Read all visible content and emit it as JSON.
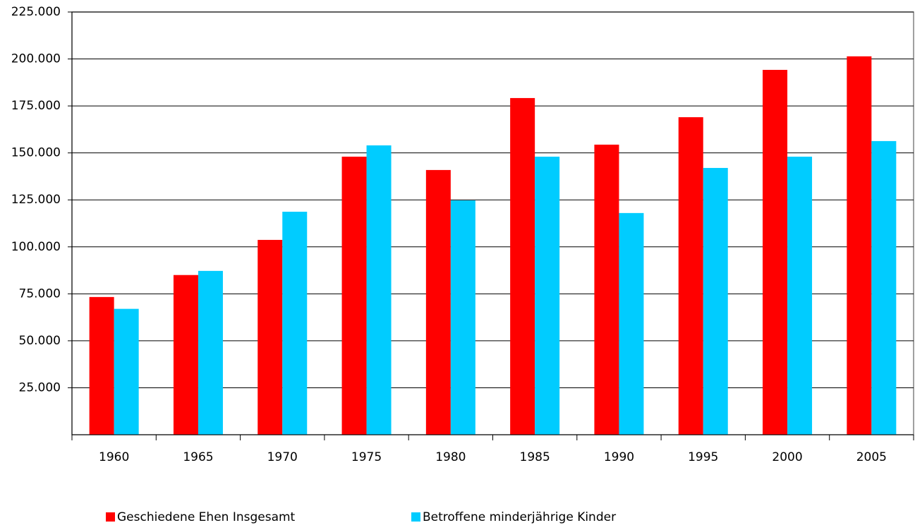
{
  "chart_data": {
    "type": "bar",
    "categories": [
      "1960",
      "1965",
      "1970",
      "1975",
      "1980",
      "1985",
      "1990",
      "1995",
      "2000",
      "2005"
    ],
    "series": [
      {
        "name": "Geschiedene Ehen Insgesamt",
        "color": "#ff0000",
        "values": [
          73300,
          85000,
          103700,
          148000,
          140900,
          179200,
          154400,
          169000,
          194200,
          201400
        ]
      },
      {
        "name": "Betroffene minderjährige Kinder",
        "color": "#00ccff",
        "values": [
          67000,
          87200,
          118700,
          154000,
          124700,
          148000,
          118000,
          142000,
          148000,
          156300
        ]
      }
    ],
    "ylim": [
      0,
      225000
    ],
    "yticks": [
      {
        "value": 25000,
        "label": "25.000"
      },
      {
        "value": 50000,
        "label": "50.000"
      },
      {
        "value": 75000,
        "label": "75.000"
      },
      {
        "value": 100000,
        "label": "100.000"
      },
      {
        "value": 125000,
        "label": "125.000"
      },
      {
        "value": 150000,
        "label": "150.000"
      },
      {
        "value": 175000,
        "label": "175.000"
      },
      {
        "value": 200000,
        "label": "200.000"
      },
      {
        "value": 225000,
        "label": "225.000"
      }
    ],
    "grid": true,
    "legend": "bottom"
  }
}
